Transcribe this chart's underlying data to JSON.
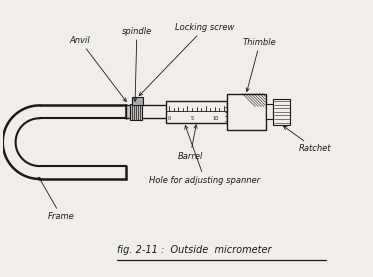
{
  "bg_color": "#f0eeea",
  "line_color": "#1a1a1a",
  "title_text": "fig. 2-11 :  Outside  micrometer",
  "labels": {
    "anvil": "Anvil",
    "spindle": "spindle",
    "locking_screw": "Locking screw",
    "thimble": "Thimble",
    "barrel": "Barrel",
    "frame": "Frame",
    "hole": "Hole for adjusting spanner",
    "ratchet": "Ratchet"
  },
  "figsize": [
    3.73,
    2.77
  ],
  "dpi": 100
}
